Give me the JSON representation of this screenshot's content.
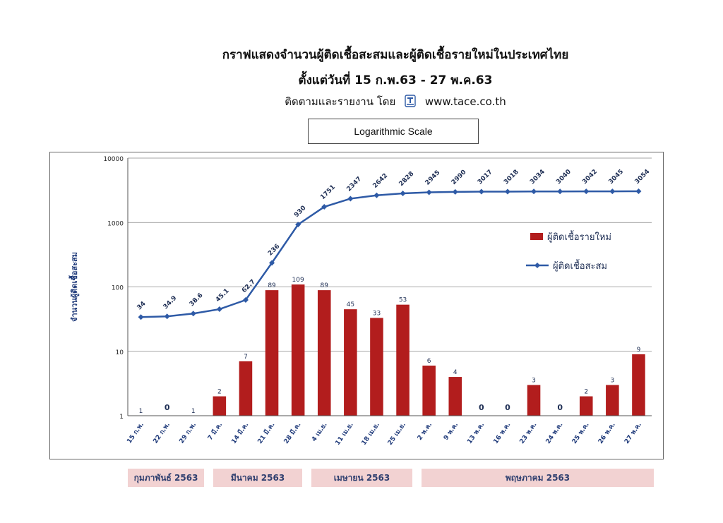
{
  "header": {
    "title": "กราฟแสดงจำนวนผู้ติดเชื้อสะสมและผู้ติดเชื้อรายใหม่ในประเทศไทย",
    "subtitle": "ตั้งแต่วันที่ 15 ก.พ.63 - 27 พ.ค.63",
    "credit_text": "ติดตามและรายงาน โดย",
    "credit_logo_icon": "tace-logo-icon",
    "credit_url": "www.tace.co.th"
  },
  "scale_label": "Logarithmic Scale",
  "colors": {
    "bar": "#b21d1d",
    "line": "#2e5aa6",
    "axis_text": "#1f3a7a",
    "month_band": "#f2d2d2"
  },
  "chart_data": {
    "type": "bar",
    "yscale": "log",
    "ylim": [
      1,
      10000
    ],
    "yticks": [
      "1",
      "10",
      "100",
      "1000",
      "10000"
    ],
    "ylabel": "จำนวนผู้ติดเชื้อสะสม",
    "grid": true,
    "legend_position": "right",
    "categories": [
      "15 ก.พ.",
      "22 ก.พ.",
      "29 ก.พ.",
      "7 มี.ค.",
      "14 มี.ค.",
      "21 มี.ค.",
      "28 มี.ค.",
      "4 เม.ย.",
      "11 เม.ย.",
      "18 เม.ย.",
      "25 เม.ย.",
      "2 พ.ค.",
      "9 พ.ค.",
      "13 พ.ค.",
      "16 พ.ค.",
      "23 พ.ค.",
      "24 พ.ค.",
      "25 พ.ค.",
      "26 พ.ค.",
      "27 พ.ค."
    ],
    "series": [
      {
        "name": "ผู้ติดเชื้อรายใหม่",
        "type": "bar",
        "values": [
          1,
          0,
          1,
          2,
          7,
          89,
          109,
          89,
          45,
          33,
          53,
          6,
          4,
          0,
          0,
          3,
          0,
          2,
          3,
          9
        ]
      },
      {
        "name": "ผู้ติดเชื้อสะสม",
        "type": "line",
        "values": [
          34,
          34.9,
          38.6,
          45.1,
          62.7,
          236,
          930,
          1751,
          2347,
          2642,
          2828,
          2945,
          2990,
          3017,
          3018,
          3034,
          3040,
          3042,
          3045,
          3054
        ]
      }
    ]
  },
  "months": [
    {
      "label": "กุมภาพันธ์ 2563"
    },
    {
      "label": "มีนาคม 2563"
    },
    {
      "label": "เมษายน 2563"
    },
    {
      "label": "พฤษภาคม 2563"
    }
  ]
}
